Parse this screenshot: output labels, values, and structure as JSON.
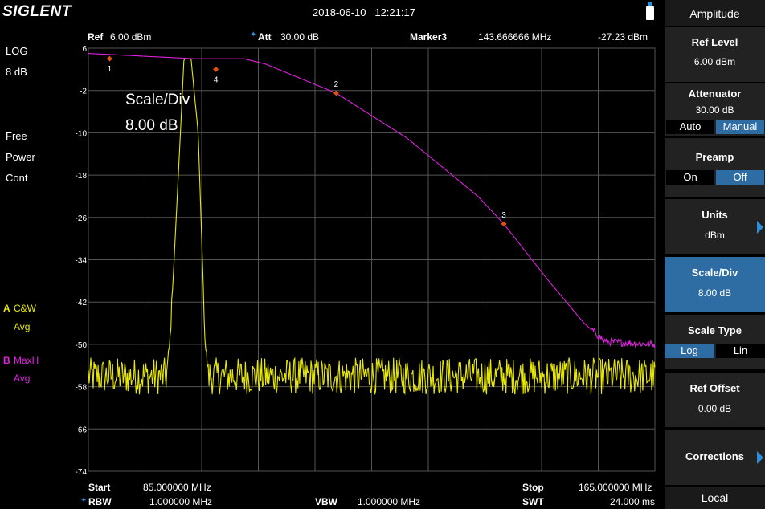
{
  "header": {
    "logo": "SIGLENT",
    "datetime": "2018-06-10   12:21:17"
  },
  "status": {
    "ref_label": "Ref",
    "ref_value": "6.00 dBm",
    "att_label": "Att",
    "att_value": "30.00 dB",
    "marker_label": "Marker3",
    "marker_freq": "143.666666 MHz",
    "marker_level": "-27.23 dBm"
  },
  "left": {
    "scale_mode": "LOG",
    "scale_div": "8 dB",
    "free": "Free",
    "power": "Power",
    "cont": "Cont",
    "traceA_letter": "A",
    "traceA_mode": "C&W",
    "traceA_avg": "Avg",
    "traceB_letter": "B",
    "traceB_mode": "MaxH",
    "traceB_avg": "Avg"
  },
  "overlay": {
    "scale_title": "Scale/Div",
    "scale_value": "8.00 dB"
  },
  "footer": {
    "start_label": "Start",
    "start_value": "85.000000 MHz",
    "rbw_label": "RBW",
    "rbw_value": "1.000000 MHz",
    "vbw_label": "VBW",
    "vbw_value": "1.000000 MHz",
    "stop_label": "Stop",
    "stop_value": "165.000000 MHz",
    "swt_label": "SWT",
    "swt_value": "24.000 ms"
  },
  "softkeys": {
    "menu_title": "Amplitude",
    "ref_level_title": "Ref Level",
    "ref_level_value": "6.00 dBm",
    "attenuator_title": "Attenuator",
    "attenuator_value": "30.00 dB",
    "att_auto": "Auto",
    "att_manual": "Manual",
    "preamp_title": "Preamp",
    "preamp_on": "On",
    "preamp_off": "Off",
    "units_title": "Units",
    "units_value": "dBm",
    "scalediv_title": "Scale/Div",
    "scalediv_value": "8.00 dB",
    "scaletype_title": "Scale Type",
    "scaletype_log": "Log",
    "scaletype_lin": "Lin",
    "refoffset_title": "Ref Offset",
    "refoffset_value": "0.00 dB",
    "corrections_title": "Corrections",
    "local": "Local"
  },
  "chart_data": {
    "type": "line",
    "x_range_mhz": [
      85,
      165
    ],
    "ylim": [
      -74,
      6
    ],
    "y_ticks": [
      "6",
      "-2",
      "-10",
      "-18",
      "-26",
      "-34",
      "-42",
      "-50",
      "-58",
      "-66",
      "-74"
    ],
    "grid": true,
    "colors": {
      "traceA": "#e8e800",
      "traceB": "#e020e0",
      "marker": "#e05010",
      "grid": "#555555"
    },
    "traceA_filter": {
      "name": "A",
      "description_points_mhz": [
        [
          85,
          -56
        ],
        [
          96,
          -56
        ],
        [
          96.5,
          -50
        ],
        [
          98,
          -10
        ],
        [
          98.5,
          4
        ],
        [
          99.5,
          4
        ],
        [
          100.5,
          -10
        ],
        [
          101.5,
          -50
        ],
        [
          102,
          -56
        ],
        [
          165,
          -56
        ]
      ],
      "noise_floor": -56,
      "peak": 4
    },
    "traceB_response": {
      "name": "B",
      "points": [
        [
          85,
          5
        ],
        [
          100,
          4
        ],
        [
          107,
          4
        ],
        [
          110,
          3
        ],
        [
          120,
          -2.5
        ],
        [
          130,
          -11
        ],
        [
          140,
          -22
        ],
        [
          143.67,
          -27.23
        ],
        [
          150,
          -38
        ],
        [
          155,
          -46
        ],
        [
          158,
          -49.5
        ],
        [
          165,
          -50
        ]
      ]
    },
    "markers": [
      {
        "id": "1",
        "x": 88,
        "y": 4
      },
      {
        "id": "2",
        "x": 120,
        "y": -2.5
      },
      {
        "id": "3",
        "x": 143.67,
        "y": -27.23
      },
      {
        "id": "4",
        "x": 103,
        "y": 2
      }
    ]
  }
}
